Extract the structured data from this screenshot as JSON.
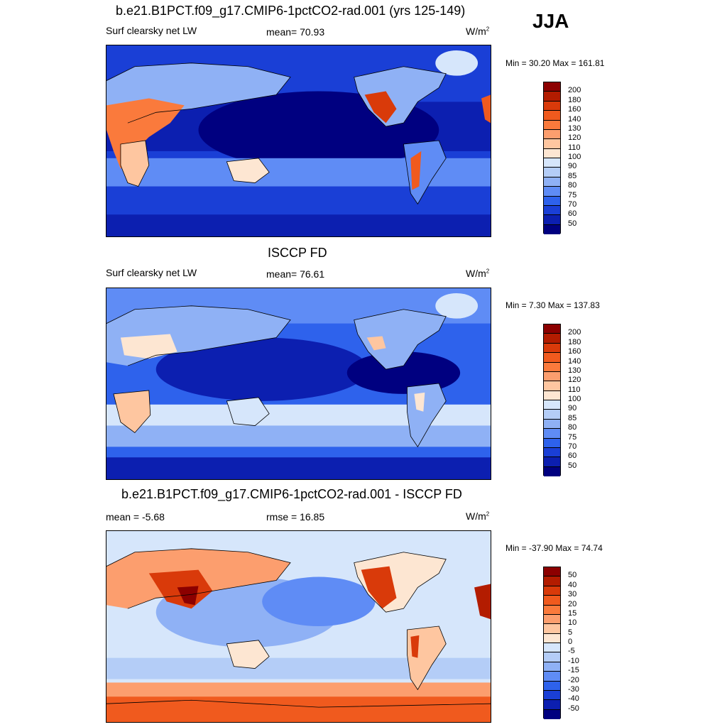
{
  "season": "JJA",
  "panels": [
    {
      "title": "b.e21.B1PCT.f09_g17.CMIP6-1pctCO2-rad.001 (yrs 125-149)",
      "left_label": "Surf clearsky net LW",
      "center_label": "mean=  70.93",
      "units": "W/m",
      "units_sup": "2",
      "minmax": "Min =  30.20 Max = 161.81",
      "colorbar": {
        "labels": [
          "200",
          "180",
          "160",
          "140",
          "130",
          "120",
          "110",
          "100",
          "90",
          "85",
          "80",
          "75",
          "70",
          "60",
          "50"
        ],
        "colors": [
          "#8c0000",
          "#b31c00",
          "#d93a0a",
          "#f05a1e",
          "#fa7a3c",
          "#fc9e6e",
          "#fec6a0",
          "#fde6d2",
          "#d6e6fb",
          "#b4cdf7",
          "#8fb1f5",
          "#5f8cf5",
          "#2e62ec",
          "#1a3fd6",
          "#0c1fb0",
          "#000080"
        ]
      }
    },
    {
      "title": "ISCCP FD",
      "left_label": "Surf clearsky net LW",
      "center_label": "mean=  76.61",
      "units": "W/m",
      "units_sup": "2",
      "minmax": "Min =   7.30 Max = 137.83",
      "colorbar": {
        "labels": [
          "200",
          "180",
          "160",
          "140",
          "130",
          "120",
          "110",
          "100",
          "90",
          "85",
          "80",
          "75",
          "70",
          "60",
          "50"
        ],
        "colors": [
          "#8c0000",
          "#b31c00",
          "#d93a0a",
          "#f05a1e",
          "#fa7a3c",
          "#fc9e6e",
          "#fec6a0",
          "#fde6d2",
          "#d6e6fb",
          "#b4cdf7",
          "#8fb1f5",
          "#5f8cf5",
          "#2e62ec",
          "#1a3fd6",
          "#0c1fb0",
          "#000080"
        ]
      }
    },
    {
      "title": "b.e21.B1PCT.f09_g17.CMIP6-1pctCO2-rad.001 - ISCCP FD",
      "left_label": "mean =  -5.68",
      "center_label": "rmse =  16.85",
      "units": "W/m",
      "units_sup": "2",
      "minmax": "Min = -37.90 Max =  74.74",
      "colorbar": {
        "labels": [
          "50",
          "40",
          "30",
          "20",
          "15",
          "10",
          "5",
          "0",
          "-5",
          "-10",
          "-15",
          "-20",
          "-30",
          "-40",
          "-50"
        ],
        "colors": [
          "#8c0000",
          "#b31c00",
          "#d93a0a",
          "#f05a1e",
          "#fa7a3c",
          "#fc9e6e",
          "#fec6a0",
          "#fde6d2",
          "#d6e6fb",
          "#b4cdf7",
          "#8fb1f5",
          "#5f8cf5",
          "#2e62ec",
          "#1a3fd6",
          "#0c1fb0",
          "#000080"
        ]
      }
    }
  ]
}
